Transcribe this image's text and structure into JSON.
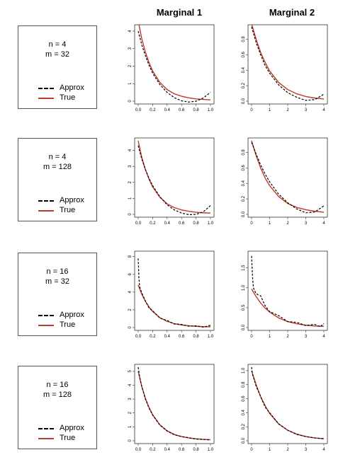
{
  "headers": [
    "Marginal 1",
    "Marginal 2"
  ],
  "legend": {
    "approx": "Approx",
    "true": "True"
  },
  "rows": [
    {
      "n_label": "n = 4",
      "m_label": "m = 32"
    },
    {
      "n_label": "n = 4",
      "m_label": "m = 128"
    },
    {
      "n_label": "n = 16",
      "m_label": "m = 32"
    },
    {
      "n_label": "n = 16",
      "m_label": "m = 128"
    }
  ],
  "colors": {
    "true": "#c0392b",
    "approx": "#000000"
  },
  "chart_data": [
    {
      "type": "line",
      "row": 0,
      "column": "Marginal 1",
      "xlim": [
        0,
        1
      ],
      "ylim": [
        0,
        4.2
      ],
      "xticks": [
        "0.0",
        "0.2",
        "0.4",
        "0.6",
        "0.8",
        "1.0"
      ],
      "yticks": [
        "0",
        "1",
        "2",
        "3",
        "4"
      ],
      "series": [
        {
          "name": "True",
          "x": [
            0,
            0.05,
            0.1,
            0.15,
            0.2,
            0.3,
            0.4,
            0.5,
            0.6,
            0.7,
            0.8,
            0.9,
            1.0
          ],
          "y": [
            4.6,
            3.55,
            2.8,
            2.2,
            1.72,
            1.07,
            0.66,
            0.42,
            0.28,
            0.19,
            0.13,
            0.1,
            0.08
          ]
        },
        {
          "name": "Approx",
          "x": [
            0,
            0.05,
            0.1,
            0.15,
            0.2,
            0.3,
            0.4,
            0.5,
            0.6,
            0.7,
            0.8,
            0.9,
            1.0
          ],
          "y": [
            4.0,
            3.2,
            2.6,
            2.05,
            1.6,
            0.95,
            0.5,
            0.2,
            0.02,
            -0.05,
            0.0,
            0.18,
            0.5
          ]
        }
      ]
    },
    {
      "type": "line",
      "row": 0,
      "column": "Marginal 2",
      "xlim": [
        0,
        4
      ],
      "ylim": [
        0,
        0.95
      ],
      "xticks": [
        "0",
        "1",
        "2",
        "3",
        "4"
      ],
      "yticks": [
        "0.0",
        "0.2",
        "0.4",
        "0.6",
        "0.8"
      ],
      "series": [
        {
          "name": "True",
          "x": [
            0,
            0.25,
            0.5,
            0.75,
            1,
            1.5,
            2,
            2.5,
            3,
            3.5,
            4
          ],
          "y": [
            1.0,
            0.8,
            0.63,
            0.5,
            0.39,
            0.24,
            0.15,
            0.095,
            0.06,
            0.04,
            0.028
          ]
        },
        {
          "name": "Approx",
          "x": [
            0,
            0.25,
            0.5,
            0.75,
            1,
            1.5,
            2,
            2.5,
            3,
            3.5,
            4
          ],
          "y": [
            0.96,
            0.76,
            0.6,
            0.46,
            0.36,
            0.21,
            0.11,
            0.05,
            0.01,
            0.02,
            0.09
          ]
        }
      ]
    },
    {
      "type": "line",
      "row": 1,
      "column": "Marginal 1",
      "xlim": [
        0,
        1
      ],
      "ylim": [
        0,
        4.6
      ],
      "xticks": [
        "0.0",
        "0.2",
        "0.4",
        "0.6",
        "0.8",
        "1.0"
      ],
      "yticks": [
        "0",
        "1",
        "2",
        "3",
        "4"
      ],
      "series": [
        {
          "name": "True",
          "x": [
            0,
            0.05,
            0.1,
            0.15,
            0.2,
            0.3,
            0.4,
            0.5,
            0.6,
            0.7,
            0.8,
            0.9,
            1.0
          ],
          "y": [
            4.6,
            3.55,
            2.8,
            2.2,
            1.72,
            1.07,
            0.66,
            0.42,
            0.28,
            0.19,
            0.13,
            0.1,
            0.08
          ]
        },
        {
          "name": "Approx",
          "x": [
            0,
            0.05,
            0.1,
            0.15,
            0.2,
            0.3,
            0.4,
            0.5,
            0.6,
            0.7,
            0.8,
            0.9,
            1.0
          ],
          "y": [
            4.3,
            3.45,
            2.8,
            2.25,
            1.8,
            1.1,
            0.6,
            0.28,
            0.08,
            -0.02,
            0.0,
            0.15,
            0.55
          ]
        }
      ]
    },
    {
      "type": "line",
      "row": 1,
      "column": "Marginal 2",
      "xlim": [
        0,
        4
      ],
      "ylim": [
        0,
        0.95
      ],
      "xticks": [
        "0",
        "1",
        "2",
        "3",
        "4"
      ],
      "yticks": [
        "0.0",
        "0.2",
        "0.4",
        "0.6",
        "0.8"
      ],
      "series": [
        {
          "name": "True",
          "x": [
            0,
            0.25,
            0.5,
            0.75,
            1,
            1.5,
            2,
            2.5,
            3,
            3.5,
            4
          ],
          "y": [
            0.95,
            0.76,
            0.6,
            0.47,
            0.37,
            0.23,
            0.14,
            0.09,
            0.06,
            0.04,
            0.028
          ]
        },
        {
          "name": "Approx",
          "x": [
            0,
            0.25,
            0.5,
            0.75,
            1,
            1.5,
            2,
            2.5,
            3,
            3.5,
            4
          ],
          "y": [
            0.93,
            0.78,
            0.64,
            0.52,
            0.42,
            0.26,
            0.15,
            0.07,
            0.02,
            0.03,
            0.11
          ]
        }
      ]
    },
    {
      "type": "line",
      "row": 2,
      "column": "Marginal 1",
      "xlim": [
        0,
        1
      ],
      "ylim": [
        0,
        8.3
      ],
      "xticks": [
        "0.0",
        "0.2",
        "0.4",
        "0.6",
        "0.8",
        "1.0"
      ],
      "yticks": [
        "0",
        "2",
        "4",
        "6",
        "8"
      ],
      "series": [
        {
          "name": "True",
          "x": [
            0,
            0.05,
            0.1,
            0.15,
            0.2,
            0.3,
            0.4,
            0.5,
            0.6,
            0.7,
            0.8,
            0.9,
            1.0
          ],
          "y": [
            4.8,
            3.75,
            2.95,
            2.32,
            1.82,
            1.12,
            0.7,
            0.44,
            0.29,
            0.2,
            0.14,
            0.1,
            0.08
          ]
        },
        {
          "name": "Approx",
          "x": [
            0,
            0.01,
            0.02,
            0.05,
            0.1,
            0.15,
            0.2,
            0.3,
            0.4,
            0.5,
            0.6,
            0.7,
            0.8,
            0.9,
            1.0
          ],
          "y": [
            7.8,
            5.6,
            4.6,
            3.9,
            3.0,
            2.2,
            1.9,
            1.05,
            0.8,
            0.4,
            0.35,
            0.15,
            0.2,
            0.05,
            0.25
          ]
        }
      ]
    },
    {
      "type": "line",
      "row": 2,
      "column": "Marginal 2",
      "xlim": [
        0,
        4
      ],
      "ylim": [
        0,
        1.85
      ],
      "xticks": [
        "0",
        "1",
        "2",
        "3",
        "4"
      ],
      "yticks": [
        "0.0",
        "0.5",
        "1.0",
        "1.5"
      ],
      "series": [
        {
          "name": "True",
          "x": [
            0,
            0.25,
            0.5,
            0.75,
            1,
            1.5,
            2,
            2.5,
            3,
            3.5,
            4
          ],
          "y": [
            0.97,
            0.78,
            0.62,
            0.49,
            0.39,
            0.24,
            0.15,
            0.095,
            0.06,
            0.04,
            0.03
          ]
        },
        {
          "name": "Approx",
          "x": [
            0,
            0.05,
            0.1,
            0.25,
            0.5,
            0.75,
            1,
            1.5,
            2,
            2.5,
            3,
            3.5,
            3.8,
            4
          ],
          "y": [
            1.8,
            1.3,
            1.0,
            0.85,
            0.8,
            0.55,
            0.4,
            0.3,
            0.15,
            0.13,
            0.05,
            0.08,
            0.02,
            0.1
          ]
        }
      ]
    },
    {
      "type": "line",
      "row": 3,
      "column": "Marginal 1",
      "xlim": [
        0,
        1
      ],
      "ylim": [
        0,
        5.3
      ],
      "xticks": [
        "0.0",
        "0.2",
        "0.4",
        "0.6",
        "0.8",
        "1.0"
      ],
      "yticks": [
        "0",
        "1",
        "2",
        "3",
        "4",
        "5"
      ],
      "series": [
        {
          "name": "True",
          "x": [
            0,
            0.05,
            0.1,
            0.15,
            0.2,
            0.3,
            0.4,
            0.5,
            0.6,
            0.7,
            0.8,
            0.9,
            1.0
          ],
          "y": [
            5.0,
            3.9,
            3.05,
            2.4,
            1.88,
            1.15,
            0.72,
            0.45,
            0.3,
            0.2,
            0.14,
            0.1,
            0.08
          ]
        },
        {
          "name": "Approx",
          "x": [
            0,
            0.02,
            0.05,
            0.1,
            0.15,
            0.2,
            0.3,
            0.4,
            0.5,
            0.6,
            0.7,
            0.8,
            0.9,
            1.0
          ],
          "y": [
            5.3,
            4.6,
            3.9,
            3.0,
            2.35,
            1.85,
            1.12,
            0.7,
            0.43,
            0.3,
            0.22,
            0.12,
            0.1,
            0.05
          ]
        }
      ]
    },
    {
      "type": "line",
      "row": 3,
      "column": "Marginal 2",
      "xlim": [
        0,
        4
      ],
      "ylim": [
        0,
        1.05
      ],
      "xticks": [
        "0",
        "1",
        "2",
        "3",
        "4"
      ],
      "yticks": [
        "0.0",
        "0.2",
        "0.4",
        "0.6",
        "0.8",
        "1.0"
      ],
      "series": [
        {
          "name": "True",
          "x": [
            0,
            0.25,
            0.5,
            0.75,
            1,
            1.5,
            2,
            2.5,
            3,
            3.5,
            4
          ],
          "y": [
            1.0,
            0.8,
            0.63,
            0.5,
            0.39,
            0.24,
            0.15,
            0.095,
            0.06,
            0.04,
            0.028
          ]
        },
        {
          "name": "Approx",
          "x": [
            0,
            0.05,
            0.25,
            0.5,
            0.75,
            1,
            1.5,
            2,
            2.5,
            3,
            3.5,
            4
          ],
          "y": [
            1.05,
            0.95,
            0.78,
            0.63,
            0.48,
            0.4,
            0.24,
            0.15,
            0.09,
            0.06,
            0.04,
            0.03
          ]
        }
      ]
    }
  ]
}
